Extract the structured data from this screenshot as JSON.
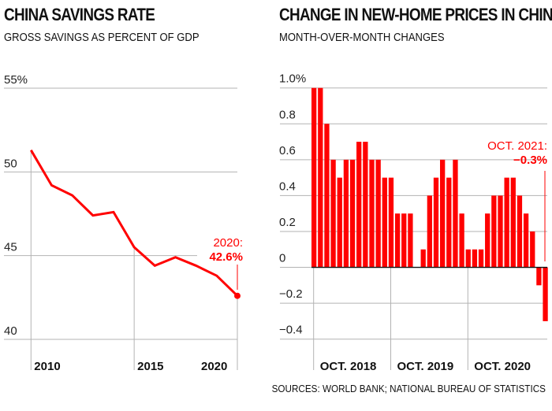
{
  "chart_data": [
    {
      "type": "line",
      "title": "CHINA SAVINGS RATE",
      "subtitle": "GROSS SAVINGS AS PERCENT OF GDP",
      "x": [
        2010,
        2011,
        2012,
        2013,
        2014,
        2015,
        2016,
        2017,
        2018,
        2019,
        2020
      ],
      "series": [
        {
          "values": [
            51.3,
            49.2,
            48.6,
            47.4,
            47.6,
            45.5,
            44.4,
            44.9,
            44.4,
            43.8,
            42.6
          ]
        }
      ],
      "ylim": [
        40,
        55
      ],
      "yticks": [
        "55%",
        "50",
        "45",
        "40"
      ],
      "ytick_values": [
        55,
        50,
        45,
        40
      ],
      "xticks": [
        "2010",
        "2015",
        "2020"
      ],
      "xtick_values": [
        2010,
        2015,
        2020
      ],
      "annotation": {
        "label": "2020:",
        "value": "42.6%"
      },
      "grid": true,
      "color": "#ff0000"
    },
    {
      "type": "bar",
      "title": "CHANGE IN NEW-HOME PRICES IN CHINA",
      "subtitle": "MONTH-OVER-MONTH CHANGES",
      "categories": [
        "Oct 2018",
        "Nov 2018",
        "Dec 2018",
        "Jan 2019",
        "Feb 2019",
        "Mar 2019",
        "Apr 2019",
        "May 2019",
        "Jun 2019",
        "Jul 2019",
        "Aug 2019",
        "Sep 2019",
        "Oct 2019",
        "Nov 2019",
        "Dec 2019",
        "Jan 2020",
        "Feb 2020",
        "Mar 2020",
        "Apr 2020",
        "May 2020",
        "Jun 2020",
        "Jul 2020",
        "Aug 2020",
        "Sep 2020",
        "Oct 2020",
        "Nov 2020",
        "Dec 2020",
        "Jan 2021",
        "Feb 2021",
        "Mar 2021",
        "Apr 2021",
        "May 2021",
        "Jun 2021",
        "Jul 2021",
        "Aug 2021",
        "Sep 2021",
        "Oct 2021"
      ],
      "values": [
        1.0,
        1.0,
        0.8,
        0.6,
        0.5,
        0.6,
        0.6,
        0.7,
        0.7,
        0.6,
        0.6,
        0.5,
        0.5,
        0.3,
        0.3,
        0.3,
        0.0,
        0.1,
        0.4,
        0.5,
        0.6,
        0.5,
        0.6,
        0.3,
        0.1,
        0.1,
        0.1,
        0.3,
        0.4,
        0.4,
        0.5,
        0.5,
        0.4,
        0.3,
        0.2,
        -0.1,
        -0.3
      ],
      "ylim": [
        -0.4,
        1.0
      ],
      "yticks": [
        "1.0%",
        "0.8",
        "0.6",
        "0.4",
        "0.2",
        "0",
        "−0.2",
        "−0.4"
      ],
      "ytick_values": [
        1.0,
        0.8,
        0.6,
        0.4,
        0.2,
        0,
        -0.2,
        -0.4
      ],
      "xticks": [
        "OCT. 2018",
        "OCT. 2019",
        "OCT. 2020"
      ],
      "xtick_indices": [
        0,
        12,
        24
      ],
      "annotation": {
        "label": "OCT. 2021:",
        "value": "−0.3%"
      },
      "grid": true,
      "color": "#ff0000"
    }
  ],
  "source": "SOURCES: WORLD BANK; NATIONAL BUREAU OF STATISTICS"
}
